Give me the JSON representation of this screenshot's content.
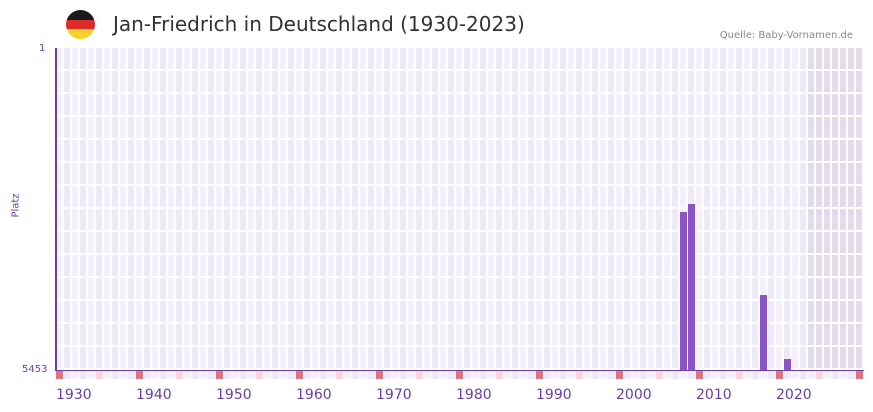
{
  "header": {
    "title": "Jan-Friedrich in Deutschland (1930-2023)",
    "source": "Quelle: Baby-Vornamen.de",
    "flag_colors": [
      "#1a1a1a",
      "#dd2a2a",
      "#f7cf2a"
    ]
  },
  "axis": {
    "y_top_label": "1",
    "y_bottom_label": "5453",
    "y_title": "Platz",
    "x_labels": [
      "1930",
      "1940",
      "1950",
      "1960",
      "1970",
      "1980",
      "1990",
      "2000",
      "2010",
      "2020"
    ]
  },
  "colors": {
    "bar": "#8b55c7",
    "axis": "#6b3fa0",
    "decade_marker": "#e07380",
    "half_decade_marker": "#f5d6dc",
    "future_shade": "#e2dcec"
  },
  "chart_data": {
    "type": "bar",
    "title": "Jan-Friedrich in Deutschland (1930-2023)",
    "xlabel": "",
    "ylabel": "Platz",
    "y_inverted": true,
    "ylim": [
      5453,
      1
    ],
    "x_range": [
      1930,
      2030
    ],
    "grid": true,
    "legend": null,
    "categories": [
      2008,
      2009,
      2018,
      2021
    ],
    "values": [
      2778,
      2642,
      4183,
      5267
    ],
    "annotations": [
      "Quelle: Baby-Vornamen.de"
    ]
  }
}
